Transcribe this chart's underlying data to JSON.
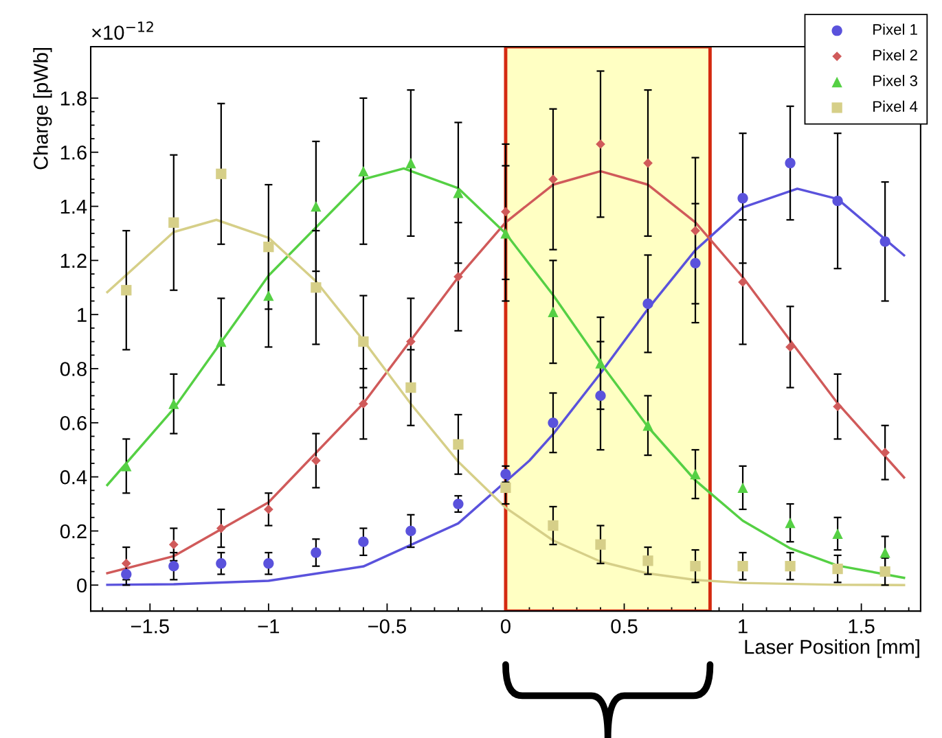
{
  "chart_data": {
    "type": "scatter",
    "xlabel": "Laser Position [mm]",
    "ylabel": "Charge [pWb]",
    "annotations": [
      "×10$^{−12}$"
    ],
    "xlim": [
      -1.75,
      1.75
    ],
    "xticks": [
      {
        "value": -1.5,
        "label": "−1.5"
      },
      {
        "value": -1,
        "label": "−1"
      },
      {
        "value": -0.5,
        "label": "−0.5"
      },
      0,
      0.5,
      1,
      1.5
    ],
    "ylim": [
      -0.096,
      1.99
    ],
    "yticks": [
      0,
      0.2,
      0.4,
      0.6,
      0.8,
      1,
      1.2,
      1.4,
      1.6,
      1.8
    ],
    "grid": false,
    "legend": "top right",
    "bands": [
      {
        "axis": "x",
        "from": 0,
        "to": 0.862,
        "color": "#ffff88"
      }
    ],
    "series": [
      {
        "name": "Pixel 1",
        "marker": "circle",
        "color": "#5a52dc",
        "x": [
          -1.6,
          -1.4,
          -1.2,
          -1.0,
          -0.8,
          -0.6,
          -0.4,
          -0.2,
          0,
          0.2,
          0.4,
          0.6,
          0.8,
          1.0,
          1.2,
          1.4,
          1.6
        ],
        "values": [
          0.04,
          0.07,
          0.08,
          0.08,
          0.12,
          0.16,
          0.2,
          0.3,
          0.41,
          0.6,
          0.7,
          1.04,
          1.19,
          1.43,
          1.56,
          1.42,
          1.27
        ],
        "errors": [
          0.04,
          0.05,
          0.04,
          0.04,
          0.05,
          0.05,
          0.06,
          0.03,
          0.03,
          0.11,
          0.2,
          0.18,
          0.22,
          0.24,
          0.21,
          0.25,
          0.22
        ]
      },
      {
        "name": "Pixel 2",
        "marker": "diamond",
        "color": "#d05a5a",
        "x": [
          -1.6,
          -1.4,
          -1.2,
          -1.0,
          -0.8,
          -0.6,
          -0.4,
          -0.2,
          0,
          0.2,
          0.4,
          0.6,
          0.8,
          1.0,
          1.2,
          1.4,
          1.6
        ],
        "values": [
          0.08,
          0.15,
          0.21,
          0.28,
          0.46,
          0.67,
          0.9,
          1.14,
          1.38,
          1.5,
          1.63,
          1.56,
          1.31,
          1.12,
          0.88,
          0.66,
          0.49
        ],
        "errors": [
          0.06,
          0.06,
          0.07,
          0.06,
          0.1,
          0.13,
          0.16,
          0.2,
          0.25,
          0.26,
          0.27,
          0.27,
          0.27,
          0.23,
          0.15,
          0.12,
          0.1
        ]
      },
      {
        "name": "Pixel 3",
        "marker": "triangle",
        "color": "#55d044",
        "x": [
          -1.6,
          -1.4,
          -1.2,
          -1.0,
          -0.8,
          -0.6,
          -0.4,
          -0.2,
          0,
          0.2,
          0.4,
          0.6,
          0.8,
          1.0,
          1.2,
          1.4,
          1.6
        ],
        "values": [
          0.44,
          0.67,
          0.9,
          1.07,
          1.4,
          1.53,
          1.56,
          1.45,
          1.3,
          1.01,
          0.82,
          0.59,
          0.41,
          0.36,
          0.23,
          0.19,
          0.12
        ],
        "errors": [
          0.1,
          0.11,
          0.16,
          0.19,
          0.24,
          0.27,
          0.27,
          0.26,
          0.25,
          0.19,
          0.17,
          0.11,
          0.09,
          0.08,
          0.07,
          0.06,
          0.06
        ]
      },
      {
        "name": "Pixel 4",
        "marker": "square",
        "color": "#d6cf88",
        "x": [
          -1.6,
          -1.4,
          -1.2,
          -1.0,
          -0.8,
          -0.6,
          -0.4,
          -0.2,
          0,
          0.2,
          0.4,
          0.6,
          0.8,
          1.0,
          1.2,
          1.4,
          1.6
        ],
        "values": [
          1.09,
          1.34,
          1.52,
          1.25,
          1.1,
          0.9,
          0.73,
          0.52,
          0.36,
          0.22,
          0.15,
          0.09,
          0.07,
          0.07,
          0.07,
          0.06,
          0.05
        ],
        "errors": [
          0.22,
          0.25,
          0.26,
          0.23,
          0.21,
          0.17,
          0.14,
          0.11,
          0.06,
          0.07,
          0.07,
          0.05,
          0.06,
          0.05,
          0.05,
          0.05,
          0.05
        ]
      },
      {
        "type": "line",
        "marker": "none",
        "color": "#5a52dc",
        "x": [
          -1.68,
          -1.4,
          -1.0,
          -0.6,
          -0.2,
          0.1,
          0.2,
          0.4,
          0.6,
          0.8,
          1.0,
          1.23,
          1.4,
          1.68
        ],
        "values": [
          0.001,
          0.003,
          0.016,
          0.069,
          0.228,
          0.46,
          0.558,
          0.783,
          1.021,
          1.238,
          1.396,
          1.465,
          1.427,
          1.219
        ]
      },
      {
        "type": "line",
        "marker": "none",
        "color": "#d05a5a",
        "x": [
          -1.68,
          -1.4,
          -1.0,
          -0.6,
          -0.2,
          0,
          0.2,
          0.4,
          0.6,
          0.8,
          1.0,
          1.2,
          1.4,
          1.68
        ],
        "values": [
          0.044,
          0.107,
          0.306,
          0.672,
          1.138,
          1.341,
          1.48,
          1.53,
          1.48,
          1.341,
          1.138,
          0.904,
          0.672,
          0.398
        ]
      },
      {
        "type": "line",
        "marker": "none",
        "color": "#55d044",
        "x": [
          -1.68,
          -1.4,
          -1.0,
          -0.6,
          -0.43,
          -0.2,
          0,
          0.2,
          0.4,
          0.6,
          0.8,
          1.0,
          1.2,
          1.4,
          1.68
        ],
        "values": [
          0.37,
          0.652,
          1.144,
          1.5,
          1.54,
          1.467,
          1.3,
          1.072,
          0.821,
          0.585,
          0.387,
          0.238,
          0.136,
          0.072,
          0.027
        ]
      },
      {
        "type": "line",
        "marker": "none",
        "color": "#d6cf88",
        "x": [
          -1.68,
          -1.4,
          -1.22,
          -1.0,
          -0.8,
          -0.6,
          -0.4,
          -0.2,
          0,
          0.2,
          0.4,
          0.6,
          0.8,
          1.0,
          1.4,
          1.68
        ],
        "values": [
          1.083,
          1.305,
          1.35,
          1.284,
          1.123,
          0.904,
          0.67,
          0.456,
          0.286,
          0.165,
          0.087,
          0.043,
          0.019,
          0.008,
          0.001,
          0.0
        ]
      }
    ]
  }
}
